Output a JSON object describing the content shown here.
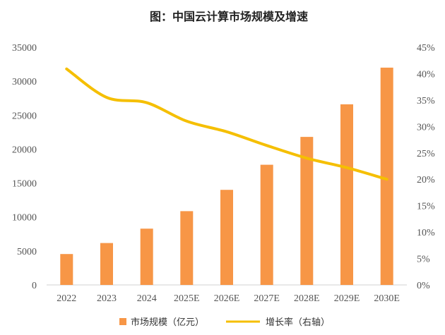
{
  "chart_data": {
    "type": "bar",
    "title": "图：中国云计算市场规模及增速",
    "categories": [
      "2022",
      "2023",
      "2024",
      "2025E",
      "2026E",
      "2027E",
      "2028E",
      "2029E",
      "2030E"
    ],
    "series": [
      {
        "name": "市场规模（亿元）",
        "type": "bar",
        "axis": "left",
        "color": "#f79646",
        "values": [
          4550,
          6165,
          8290,
          10860,
          14000,
          17700,
          21800,
          26600,
          32000
        ]
      },
      {
        "name": "增长率（右轴）",
        "type": "line",
        "axis": "right",
        "color": "#f5bf00",
        "values": [
          0.409,
          0.355,
          0.345,
          0.31,
          0.29,
          0.264,
          0.24,
          0.222,
          0.2
        ]
      }
    ],
    "y_left": {
      "range": [
        0,
        35000
      ],
      "ticks": [
        "0",
        "5000",
        "10000",
        "15000",
        "20000",
        "25000",
        "30000",
        "35000"
      ]
    },
    "y_right": {
      "range": [
        0,
        0.45
      ],
      "ticks": [
        "0%",
        "5%",
        "10%",
        "15%",
        "20%",
        "25%",
        "30%",
        "35%",
        "40%",
        "45%"
      ]
    },
    "grid": false,
    "legend": "bottom"
  }
}
